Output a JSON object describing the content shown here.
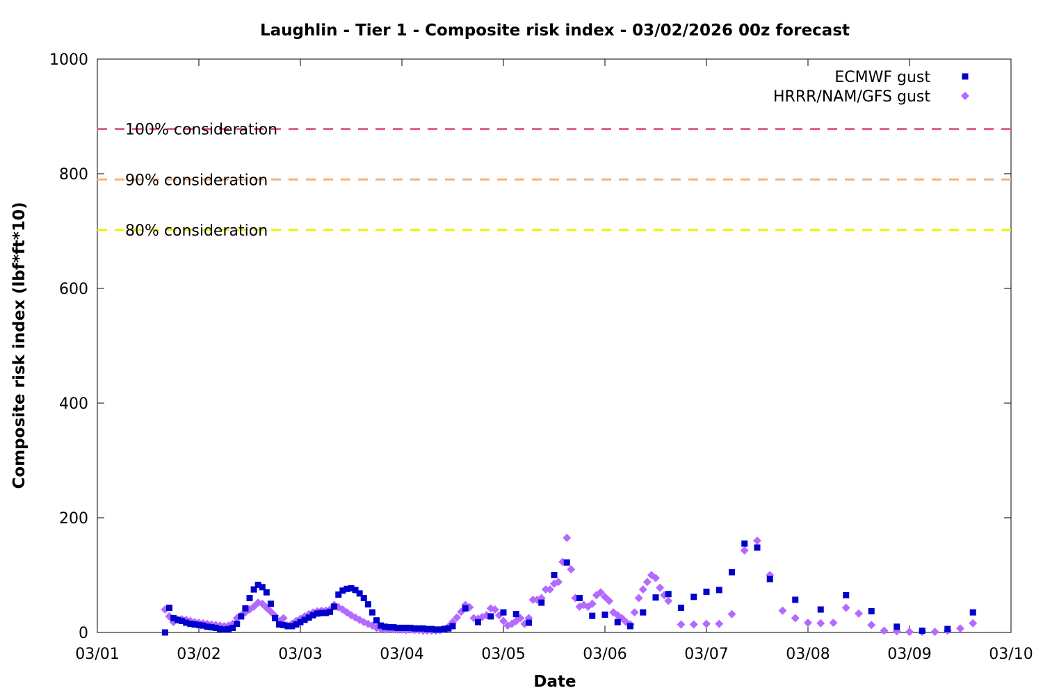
{
  "chart_data": {
    "type": "scatter",
    "title": "Laughlin - Tier 1 - Composite risk index - 03/02/2026 00z forecast",
    "xlabel": "Date",
    "ylabel": "Composite risk index (lbf*ft*10)",
    "x_tick_labels": [
      "03/01",
      "03/02",
      "03/03",
      "03/04",
      "03/05",
      "03/06",
      "03/07",
      "03/08",
      "03/09",
      "03/10"
    ],
    "xlim": [
      "03/01",
      "03/10"
    ],
    "ylim": [
      0,
      1000
    ],
    "y_ticks": [
      0,
      200,
      400,
      600,
      800,
      1000
    ],
    "grid": false,
    "legend_position": "top-right",
    "reference_lines": [
      {
        "label": "100% consideration",
        "value": 878,
        "color": "#e0607e"
      },
      {
        "label": "90% consideration",
        "value": 790,
        "color": "#f5b27e"
      },
      {
        "label": "80% consideration",
        "value": 702,
        "color": "#f0f000"
      }
    ],
    "series": [
      {
        "name": "ECMWF gust",
        "marker": "square",
        "color": "#0000cd",
        "points": [
          [
            "03/01 16:00",
            0
          ],
          [
            "03/01 17:00",
            43
          ],
          [
            "03/01 18:00",
            25
          ],
          [
            "03/01 19:00",
            22
          ],
          [
            "03/01 20:00",
            20
          ],
          [
            "03/01 21:00",
            17
          ],
          [
            "03/01 22:00",
            15
          ],
          [
            "03/01 23:00",
            14
          ],
          [
            "03/02 00:00",
            13
          ],
          [
            "03/02 01:00",
            12
          ],
          [
            "03/02 02:00",
            10
          ],
          [
            "03/02 03:00",
            9
          ],
          [
            "03/02 04:00",
            8
          ],
          [
            "03/02 05:00",
            6
          ],
          [
            "03/02 06:00",
            5
          ],
          [
            "03/02 07:00",
            6
          ],
          [
            "03/02 08:00",
            8
          ],
          [
            "03/02 09:00",
            15
          ],
          [
            "03/02 10:00",
            28
          ],
          [
            "03/02 11:00",
            42
          ],
          [
            "03/02 12:00",
            60
          ],
          [
            "03/02 13:00",
            75
          ],
          [
            "03/02 14:00",
            83
          ],
          [
            "03/02 15:00",
            79
          ],
          [
            "03/02 16:00",
            70
          ],
          [
            "03/02 17:00",
            50
          ],
          [
            "03/02 18:00",
            25
          ],
          [
            "03/02 19:00",
            14
          ],
          [
            "03/02 20:00",
            13
          ],
          [
            "03/02 21:00",
            11
          ],
          [
            "03/02 22:00",
            11
          ],
          [
            "03/02 23:00",
            14
          ],
          [
            "03/03 00:00",
            18
          ],
          [
            "03/03 01:00",
            22
          ],
          [
            "03/03 02:00",
            26
          ],
          [
            "03/03 03:00",
            30
          ],
          [
            "03/03 04:00",
            33
          ],
          [
            "03/03 05:00",
            34
          ],
          [
            "03/03 06:00",
            34
          ],
          [
            "03/03 07:00",
            36
          ],
          [
            "03/03 08:00",
            45
          ],
          [
            "03/03 09:00",
            66
          ],
          [
            "03/03 10:00",
            73
          ],
          [
            "03/03 11:00",
            76
          ],
          [
            "03/03 12:00",
            77
          ],
          [
            "03/03 13:00",
            74
          ],
          [
            "03/03 14:00",
            68
          ],
          [
            "03/03 15:00",
            60
          ],
          [
            "03/03 16:00",
            49
          ],
          [
            "03/03 17:00",
            35
          ],
          [
            "03/03 18:00",
            21
          ],
          [
            "03/03 19:00",
            12
          ],
          [
            "03/03 20:00",
            10
          ],
          [
            "03/03 21:00",
            9
          ],
          [
            "03/03 22:00",
            9
          ],
          [
            "03/03 23:00",
            8
          ],
          [
            "03/04 00:00",
            8
          ],
          [
            "03/04 01:00",
            8
          ],
          [
            "03/04 02:00",
            8
          ],
          [
            "03/04 03:00",
            7
          ],
          [
            "03/04 04:00",
            7
          ],
          [
            "03/04 05:00",
            7
          ],
          [
            "03/04 06:00",
            6
          ],
          [
            "03/04 07:00",
            6
          ],
          [
            "03/04 08:00",
            5
          ],
          [
            "03/04 09:00",
            5
          ],
          [
            "03/04 10:00",
            6
          ],
          [
            "03/04 11:00",
            7
          ],
          [
            "03/04 12:00",
            11
          ],
          [
            "03/04 15:00",
            42
          ],
          [
            "03/04 18:00",
            18
          ],
          [
            "03/04 21:00",
            28
          ],
          [
            "03/05 00:00",
            35
          ],
          [
            "03/05 03:00",
            32
          ],
          [
            "03/05 06:00",
            17
          ],
          [
            "03/05 09:00",
            52
          ],
          [
            "03/05 12:00",
            100
          ],
          [
            "03/05 15:00",
            122
          ],
          [
            "03/05 18:00",
            60
          ],
          [
            "03/05 21:00",
            29
          ],
          [
            "03/06 00:00",
            31
          ],
          [
            "03/06 03:00",
            18
          ],
          [
            "03/06 06:00",
            11
          ],
          [
            "03/06 09:00",
            35
          ],
          [
            "03/06 12:00",
            61
          ],
          [
            "03/06 15:00",
            67
          ],
          [
            "03/06 18:00",
            43
          ],
          [
            "03/06 21:00",
            62
          ],
          [
            "03/07 00:00",
            71
          ],
          [
            "03/07 03:00",
            74
          ],
          [
            "03/07 06:00",
            105
          ],
          [
            "03/07 09:00",
            155
          ],
          [
            "03/07 12:00",
            148
          ],
          [
            "03/07 15:00",
            93
          ],
          [
            "03/07 21:00",
            57
          ],
          [
            "03/08 03:00",
            40
          ],
          [
            "03/08 09:00",
            65
          ],
          [
            "03/08 15:00",
            37
          ],
          [
            "03/08 21:00",
            10
          ],
          [
            "03/09 03:00",
            3
          ],
          [
            "03/09 09:00",
            6
          ],
          [
            "03/09 15:00",
            35
          ]
        ]
      },
      {
        "name": "HRRR/NAM/GFS gust",
        "marker": "diamond",
        "color": "#b469ff",
        "points": [
          [
            "03/01 16:00",
            40
          ],
          [
            "03/01 17:00",
            28
          ],
          [
            "03/01 18:00",
            18
          ],
          [
            "03/01 19:00",
            22
          ],
          [
            "03/01 20:00",
            23
          ],
          [
            "03/01 21:00",
            22
          ],
          [
            "03/01 22:00",
            20
          ],
          [
            "03/01 23:00",
            18
          ],
          [
            "03/02 00:00",
            17
          ],
          [
            "03/02 01:00",
            16
          ],
          [
            "03/02 02:00",
            15
          ],
          [
            "03/02 03:00",
            14
          ],
          [
            "03/02 04:00",
            13
          ],
          [
            "03/02 05:00",
            12
          ],
          [
            "03/02 06:00",
            11
          ],
          [
            "03/02 07:00",
            12
          ],
          [
            "03/02 08:00",
            15
          ],
          [
            "03/02 09:00",
            25
          ],
          [
            "03/02 10:00",
            30
          ],
          [
            "03/02 11:00",
            35
          ],
          [
            "03/02 12:00",
            40
          ],
          [
            "03/02 13:00",
            45
          ],
          [
            "03/02 14:00",
            52
          ],
          [
            "03/02 15:00",
            50
          ],
          [
            "03/02 16:00",
            43
          ],
          [
            "03/02 17:00",
            36
          ],
          [
            "03/02 18:00",
            29
          ],
          [
            "03/02 19:00",
            20
          ],
          [
            "03/02 20:00",
            25
          ],
          [
            "03/02 21:00",
            12
          ],
          [
            "03/02 22:00",
            15
          ],
          [
            "03/02 23:00",
            20
          ],
          [
            "03/03 00:00",
            24
          ],
          [
            "03/03 01:00",
            28
          ],
          [
            "03/03 02:00",
            32
          ],
          [
            "03/03 03:00",
            35
          ],
          [
            "03/03 04:00",
            37
          ],
          [
            "03/03 05:00",
            38
          ],
          [
            "03/03 06:00",
            38
          ],
          [
            "03/03 07:00",
            40
          ],
          [
            "03/03 08:00",
            48
          ],
          [
            "03/03 09:00",
            44
          ],
          [
            "03/03 10:00",
            40
          ],
          [
            "03/03 11:00",
            35
          ],
          [
            "03/03 12:00",
            30
          ],
          [
            "03/03 13:00",
            26
          ],
          [
            "03/03 14:00",
            22
          ],
          [
            "03/03 15:00",
            18
          ],
          [
            "03/03 16:00",
            15
          ],
          [
            "03/03 17:00",
            12
          ],
          [
            "03/03 18:00",
            8
          ],
          [
            "03/03 19:00",
            6
          ],
          [
            "03/03 20:00",
            5
          ],
          [
            "03/03 21:00",
            6
          ],
          [
            "03/03 22:00",
            5
          ],
          [
            "03/03 23:00",
            5
          ],
          [
            "03/04 00:00",
            5
          ],
          [
            "03/04 01:00",
            4
          ],
          [
            "03/04 02:00",
            5
          ],
          [
            "03/04 03:00",
            4
          ],
          [
            "03/04 04:00",
            4
          ],
          [
            "03/04 05:00",
            3
          ],
          [
            "03/04 06:00",
            3
          ],
          [
            "03/04 07:00",
            3
          ],
          [
            "03/04 08:00",
            3
          ],
          [
            "03/04 09:00",
            4
          ],
          [
            "03/04 10:00",
            6
          ],
          [
            "03/04 11:00",
            10
          ],
          [
            "03/04 12:00",
            18
          ],
          [
            "03/04 13:00",
            26
          ],
          [
            "03/04 14:00",
            36
          ],
          [
            "03/04 15:00",
            48
          ],
          [
            "03/04 16:00",
            44
          ],
          [
            "03/04 17:00",
            25
          ],
          [
            "03/04 18:00",
            24
          ],
          [
            "03/04 19:00",
            27
          ],
          [
            "03/04 20:00",
            30
          ],
          [
            "03/04 21:00",
            42
          ],
          [
            "03/04 22:00",
            40
          ],
          [
            "03/04 23:00",
            30
          ],
          [
            "03/05 00:00",
            20
          ],
          [
            "03/05 01:00",
            12
          ],
          [
            "03/05 02:00",
            15
          ],
          [
            "03/05 03:00",
            20
          ],
          [
            "03/05 04:00",
            25
          ],
          [
            "03/05 05:00",
            15
          ],
          [
            "03/05 06:00",
            25
          ],
          [
            "03/05 07:00",
            57
          ],
          [
            "03/05 08:00",
            57
          ],
          [
            "03/05 09:00",
            60
          ],
          [
            "03/05 10:00",
            75
          ],
          [
            "03/05 11:00",
            75
          ],
          [
            "03/05 12:00",
            85
          ],
          [
            "03/05 13:00",
            88
          ],
          [
            "03/05 14:00",
            123
          ],
          [
            "03/05 15:00",
            165
          ],
          [
            "03/05 16:00",
            110
          ],
          [
            "03/05 17:00",
            60
          ],
          [
            "03/05 18:00",
            45
          ],
          [
            "03/05 19:00",
            48
          ],
          [
            "03/05 20:00",
            45
          ],
          [
            "03/05 21:00",
            50
          ],
          [
            "03/05 22:00",
            65
          ],
          [
            "03/05 23:00",
            70
          ],
          [
            "03/06 00:00",
            62
          ],
          [
            "03/06 01:00",
            55
          ],
          [
            "03/06 02:00",
            35
          ],
          [
            "03/06 03:00",
            30
          ],
          [
            "03/06 04:00",
            25
          ],
          [
            "03/06 05:00",
            18
          ],
          [
            "03/06 06:00",
            14
          ],
          [
            "03/06 07:00",
            35
          ],
          [
            "03/06 08:00",
            60
          ],
          [
            "03/06 09:00",
            75
          ],
          [
            "03/06 10:00",
            88
          ],
          [
            "03/06 11:00",
            100
          ],
          [
            "03/06 12:00",
            95
          ],
          [
            "03/06 13:00",
            78
          ],
          [
            "03/06 14:00",
            65
          ],
          [
            "03/06 15:00",
            55
          ],
          [
            "03/06 18:00",
            14
          ],
          [
            "03/06 21:00",
            14
          ],
          [
            "03/07 00:00",
            15
          ],
          [
            "03/07 03:00",
            15
          ],
          [
            "03/07 06:00",
            32
          ],
          [
            "03/07 09:00",
            143
          ],
          [
            "03/07 12:00",
            160
          ],
          [
            "03/07 15:00",
            100
          ],
          [
            "03/07 18:00",
            38
          ],
          [
            "03/07 21:00",
            25
          ],
          [
            "03/08 00:00",
            17
          ],
          [
            "03/08 03:00",
            16
          ],
          [
            "03/08 06:00",
            17
          ],
          [
            "03/08 09:00",
            43
          ],
          [
            "03/08 12:00",
            33
          ],
          [
            "03/08 15:00",
            13
          ],
          [
            "03/08 18:00",
            3
          ],
          [
            "03/08 21:00",
            2
          ],
          [
            "03/09 00:00",
            1
          ],
          [
            "03/09 03:00",
            1
          ],
          [
            "03/09 06:00",
            1
          ],
          [
            "03/09 09:00",
            3
          ],
          [
            "03/09 12:00",
            7
          ],
          [
            "03/09 15:00",
            16
          ]
        ]
      }
    ]
  }
}
